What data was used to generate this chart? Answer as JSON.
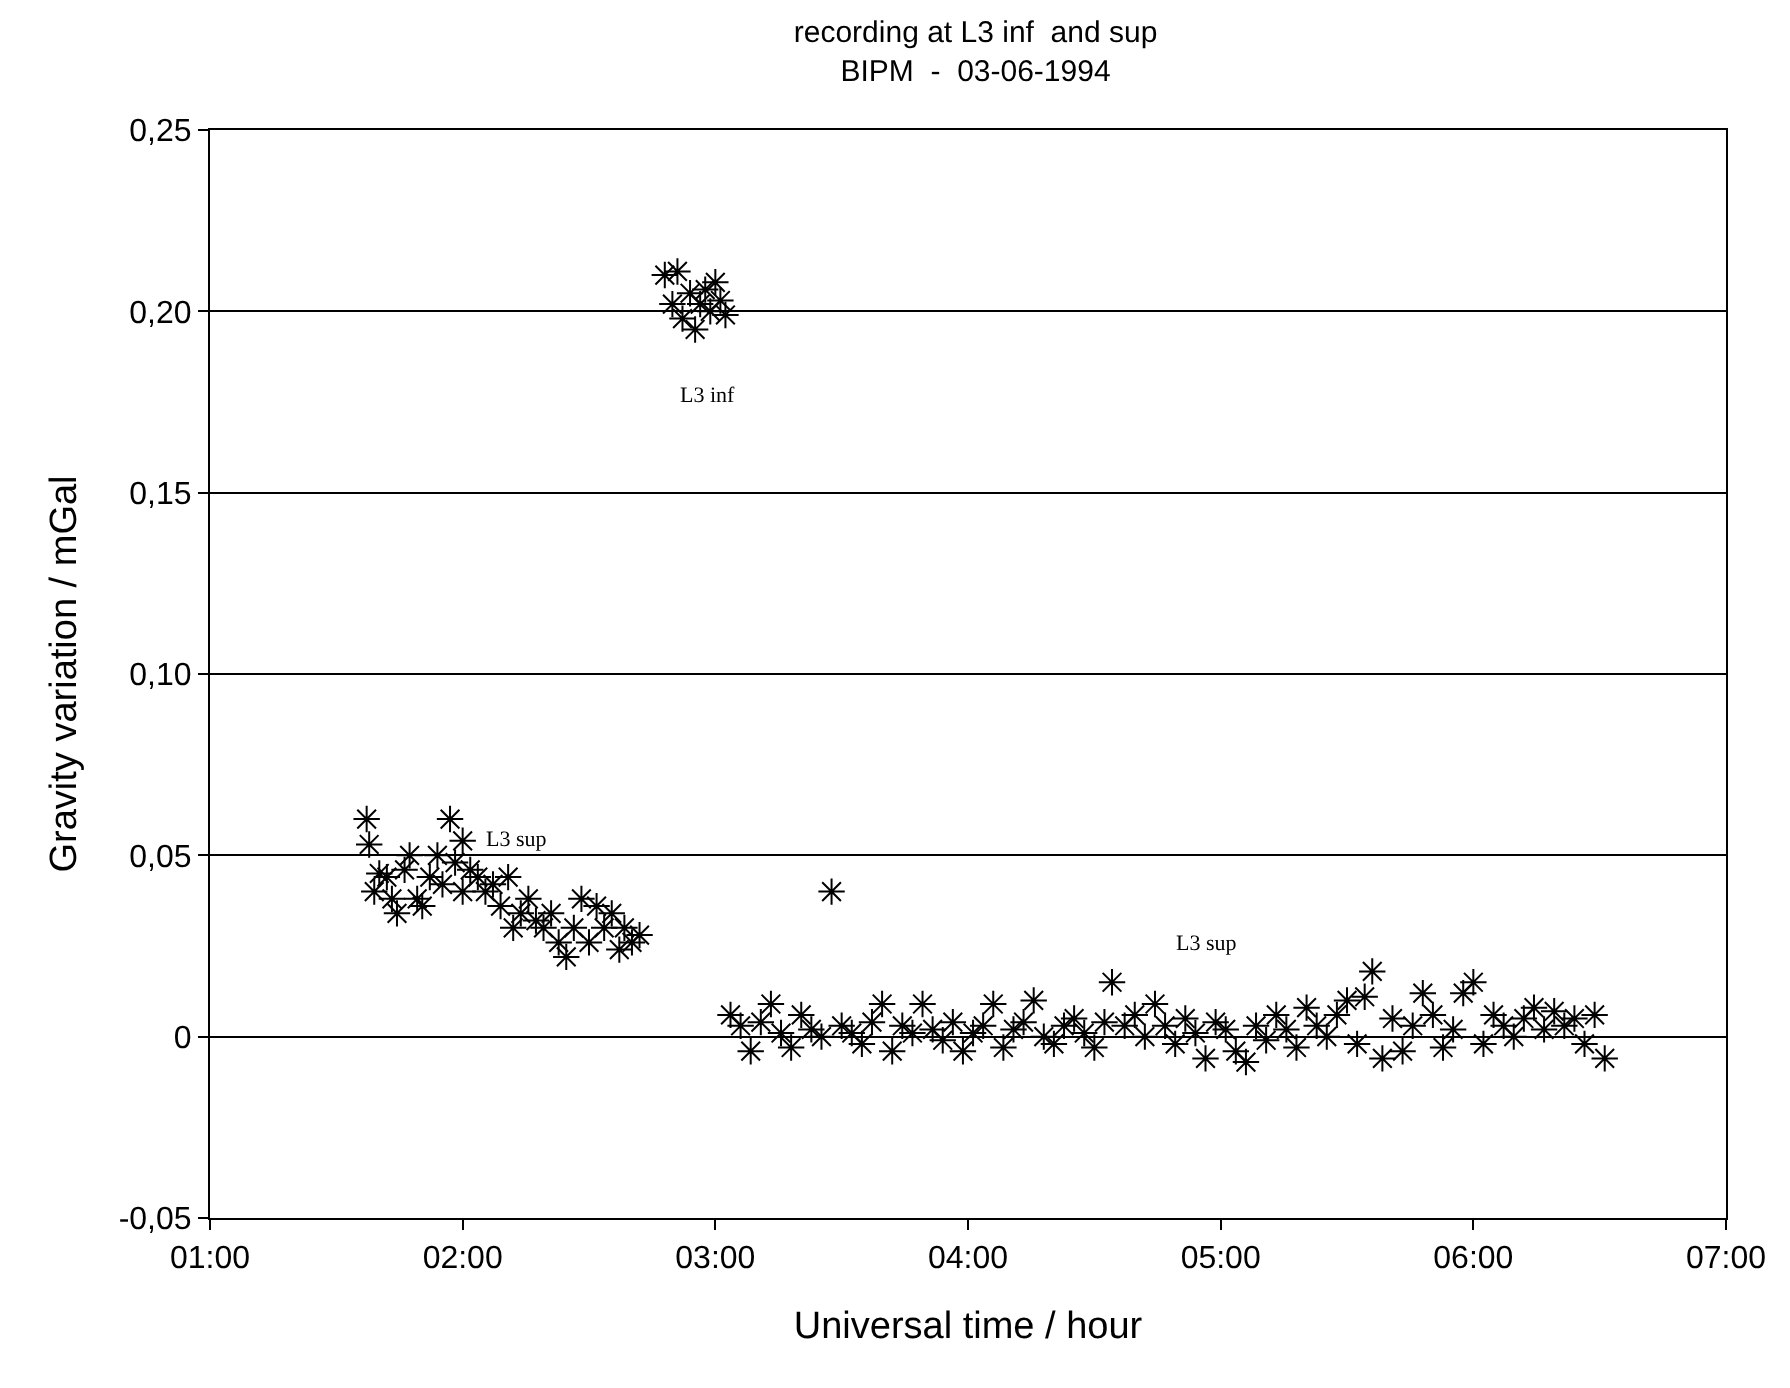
{
  "chart_data": {
    "type": "scatter",
    "title": "recording at L3 inf  and sup",
    "subtitle": "BIPM  -  03-06-1994",
    "xlabel": "Universal time / hour",
    "ylabel": "Gravity variation / mGal",
    "xlim": [
      1,
      7
    ],
    "xticks": [
      {
        "value": 1,
        "label": "01:00"
      },
      {
        "value": 2,
        "label": "02:00"
      },
      {
        "value": 3,
        "label": "03:00"
      },
      {
        "value": 4,
        "label": "04:00"
      },
      {
        "value": 5,
        "label": "05:00"
      },
      {
        "value": 6,
        "label": "06:00"
      },
      {
        "value": 7,
        "label": "07:00"
      }
    ],
    "ylim": [
      -0.05,
      0.25
    ],
    "yticks": [
      {
        "value": -0.05,
        "label": "-0,05"
      },
      {
        "value": 0,
        "label": "0"
      },
      {
        "value": 0.05,
        "label": "0,05"
      },
      {
        "value": 0.1,
        "label": "0,10"
      },
      {
        "value": 0.15,
        "label": "0,15"
      },
      {
        "value": 0.2,
        "label": "0,20"
      },
      {
        "value": 0.25,
        "label": "0,25"
      }
    ],
    "grid": "y",
    "marker": "cross",
    "annotations": [
      "L3 inf",
      "L3 sup",
      "L3 sup"
    ],
    "series": [
      {
        "color": "#000000",
        "x": [
          1.62,
          1.63,
          1.65,
          1.67,
          1.7,
          1.72,
          1.74,
          1.77,
          1.79,
          1.82,
          1.84,
          1.87,
          1.9,
          1.92,
          1.95,
          1.97,
          2.0,
          2.0,
          2.03,
          2.06,
          2.09,
          2.12,
          2.15,
          2.18,
          2.2,
          2.23,
          2.26,
          2.29,
          2.32,
          2.35,
          2.38,
          2.41,
          2.44,
          2.47,
          2.5,
          2.53,
          2.56,
          2.59,
          2.62,
          2.64,
          2.67,
          2.7
        ],
        "values": [
          0.06,
          0.053,
          0.04,
          0.045,
          0.044,
          0.038,
          0.034,
          0.046,
          0.05,
          0.038,
          0.036,
          0.044,
          0.05,
          0.042,
          0.06,
          0.048,
          0.054,
          0.04,
          0.046,
          0.044,
          0.04,
          0.042,
          0.036,
          0.044,
          0.03,
          0.034,
          0.038,
          0.032,
          0.03,
          0.034,
          0.026,
          0.022,
          0.03,
          0.038,
          0.026,
          0.036,
          0.03,
          0.034,
          0.024,
          0.03,
          0.026,
          0.028
        ]
      },
      {
        "color": "#000000",
        "x": [
          2.8,
          2.83,
          2.85,
          2.87,
          2.9,
          2.92,
          2.94,
          2.96,
          2.98,
          3.0,
          3.02,
          3.04
        ],
        "values": [
          0.21,
          0.202,
          0.211,
          0.198,
          0.205,
          0.195,
          0.202,
          0.206,
          0.2,
          0.208,
          0.203,
          0.199
        ]
      },
      {
        "color": "#000000",
        "x": [
          3.06,
          3.1,
          3.14,
          3.18,
          3.22,
          3.26,
          3.3,
          3.34,
          3.38,
          3.42,
          3.46,
          3.5,
          3.54,
          3.58,
          3.62,
          3.66,
          3.7,
          3.74,
          3.78,
          3.82,
          3.86,
          3.9,
          3.94,
          3.98,
          4.02,
          4.06,
          4.1,
          4.14,
          4.18,
          4.22,
          4.26,
          4.3,
          4.34,
          4.38,
          4.42,
          4.46,
          4.5,
          4.54,
          4.57,
          4.62,
          4.66,
          4.7,
          4.74,
          4.78,
          4.82,
          4.86,
          4.9,
          4.94,
          4.98,
          5.02,
          5.06,
          5.1,
          5.14,
          5.18,
          5.22,
          5.26,
          5.3,
          5.34,
          5.38,
          5.42,
          5.46,
          5.5,
          5.54,
          5.57,
          5.6,
          5.64,
          5.68,
          5.72,
          5.76,
          5.8,
          5.84,
          5.88,
          5.92,
          5.96,
          6.0,
          6.04,
          6.08,
          6.12,
          6.16,
          6.2,
          6.24,
          6.28,
          6.32,
          6.36,
          6.4,
          6.44,
          6.48,
          6.52
        ],
        "values": [
          0.006,
          0.003,
          -0.004,
          0.004,
          0.009,
          0.001,
          -0.003,
          0.006,
          0.002,
          0.0,
          0.04,
          0.003,
          0.001,
          -0.002,
          0.004,
          0.009,
          -0.004,
          0.003,
          0.001,
          0.009,
          0.002,
          -0.001,
          0.004,
          -0.004,
          0.001,
          0.003,
          0.009,
          -0.003,
          0.002,
          0.004,
          0.01,
          0.0,
          -0.002,
          0.003,
          0.005,
          0.001,
          -0.003,
          0.004,
          0.015,
          0.003,
          0.006,
          0.0,
          0.009,
          0.003,
          -0.002,
          0.005,
          0.001,
          -0.006,
          0.004,
          0.002,
          -0.004,
          -0.007,
          0.003,
          -0.001,
          0.006,
          0.002,
          -0.003,
          0.008,
          0.003,
          0.0,
          0.006,
          0.01,
          -0.002,
          0.011,
          0.018,
          -0.006,
          0.005,
          -0.004,
          0.003,
          0.012,
          0.006,
          -0.003,
          0.002,
          0.012,
          0.015,
          -0.002,
          0.006,
          0.003,
          0.0,
          0.005,
          0.008,
          0.002,
          0.007,
          0.003,
          0.005,
          -0.002,
          0.006,
          -0.006
        ]
      }
    ]
  }
}
